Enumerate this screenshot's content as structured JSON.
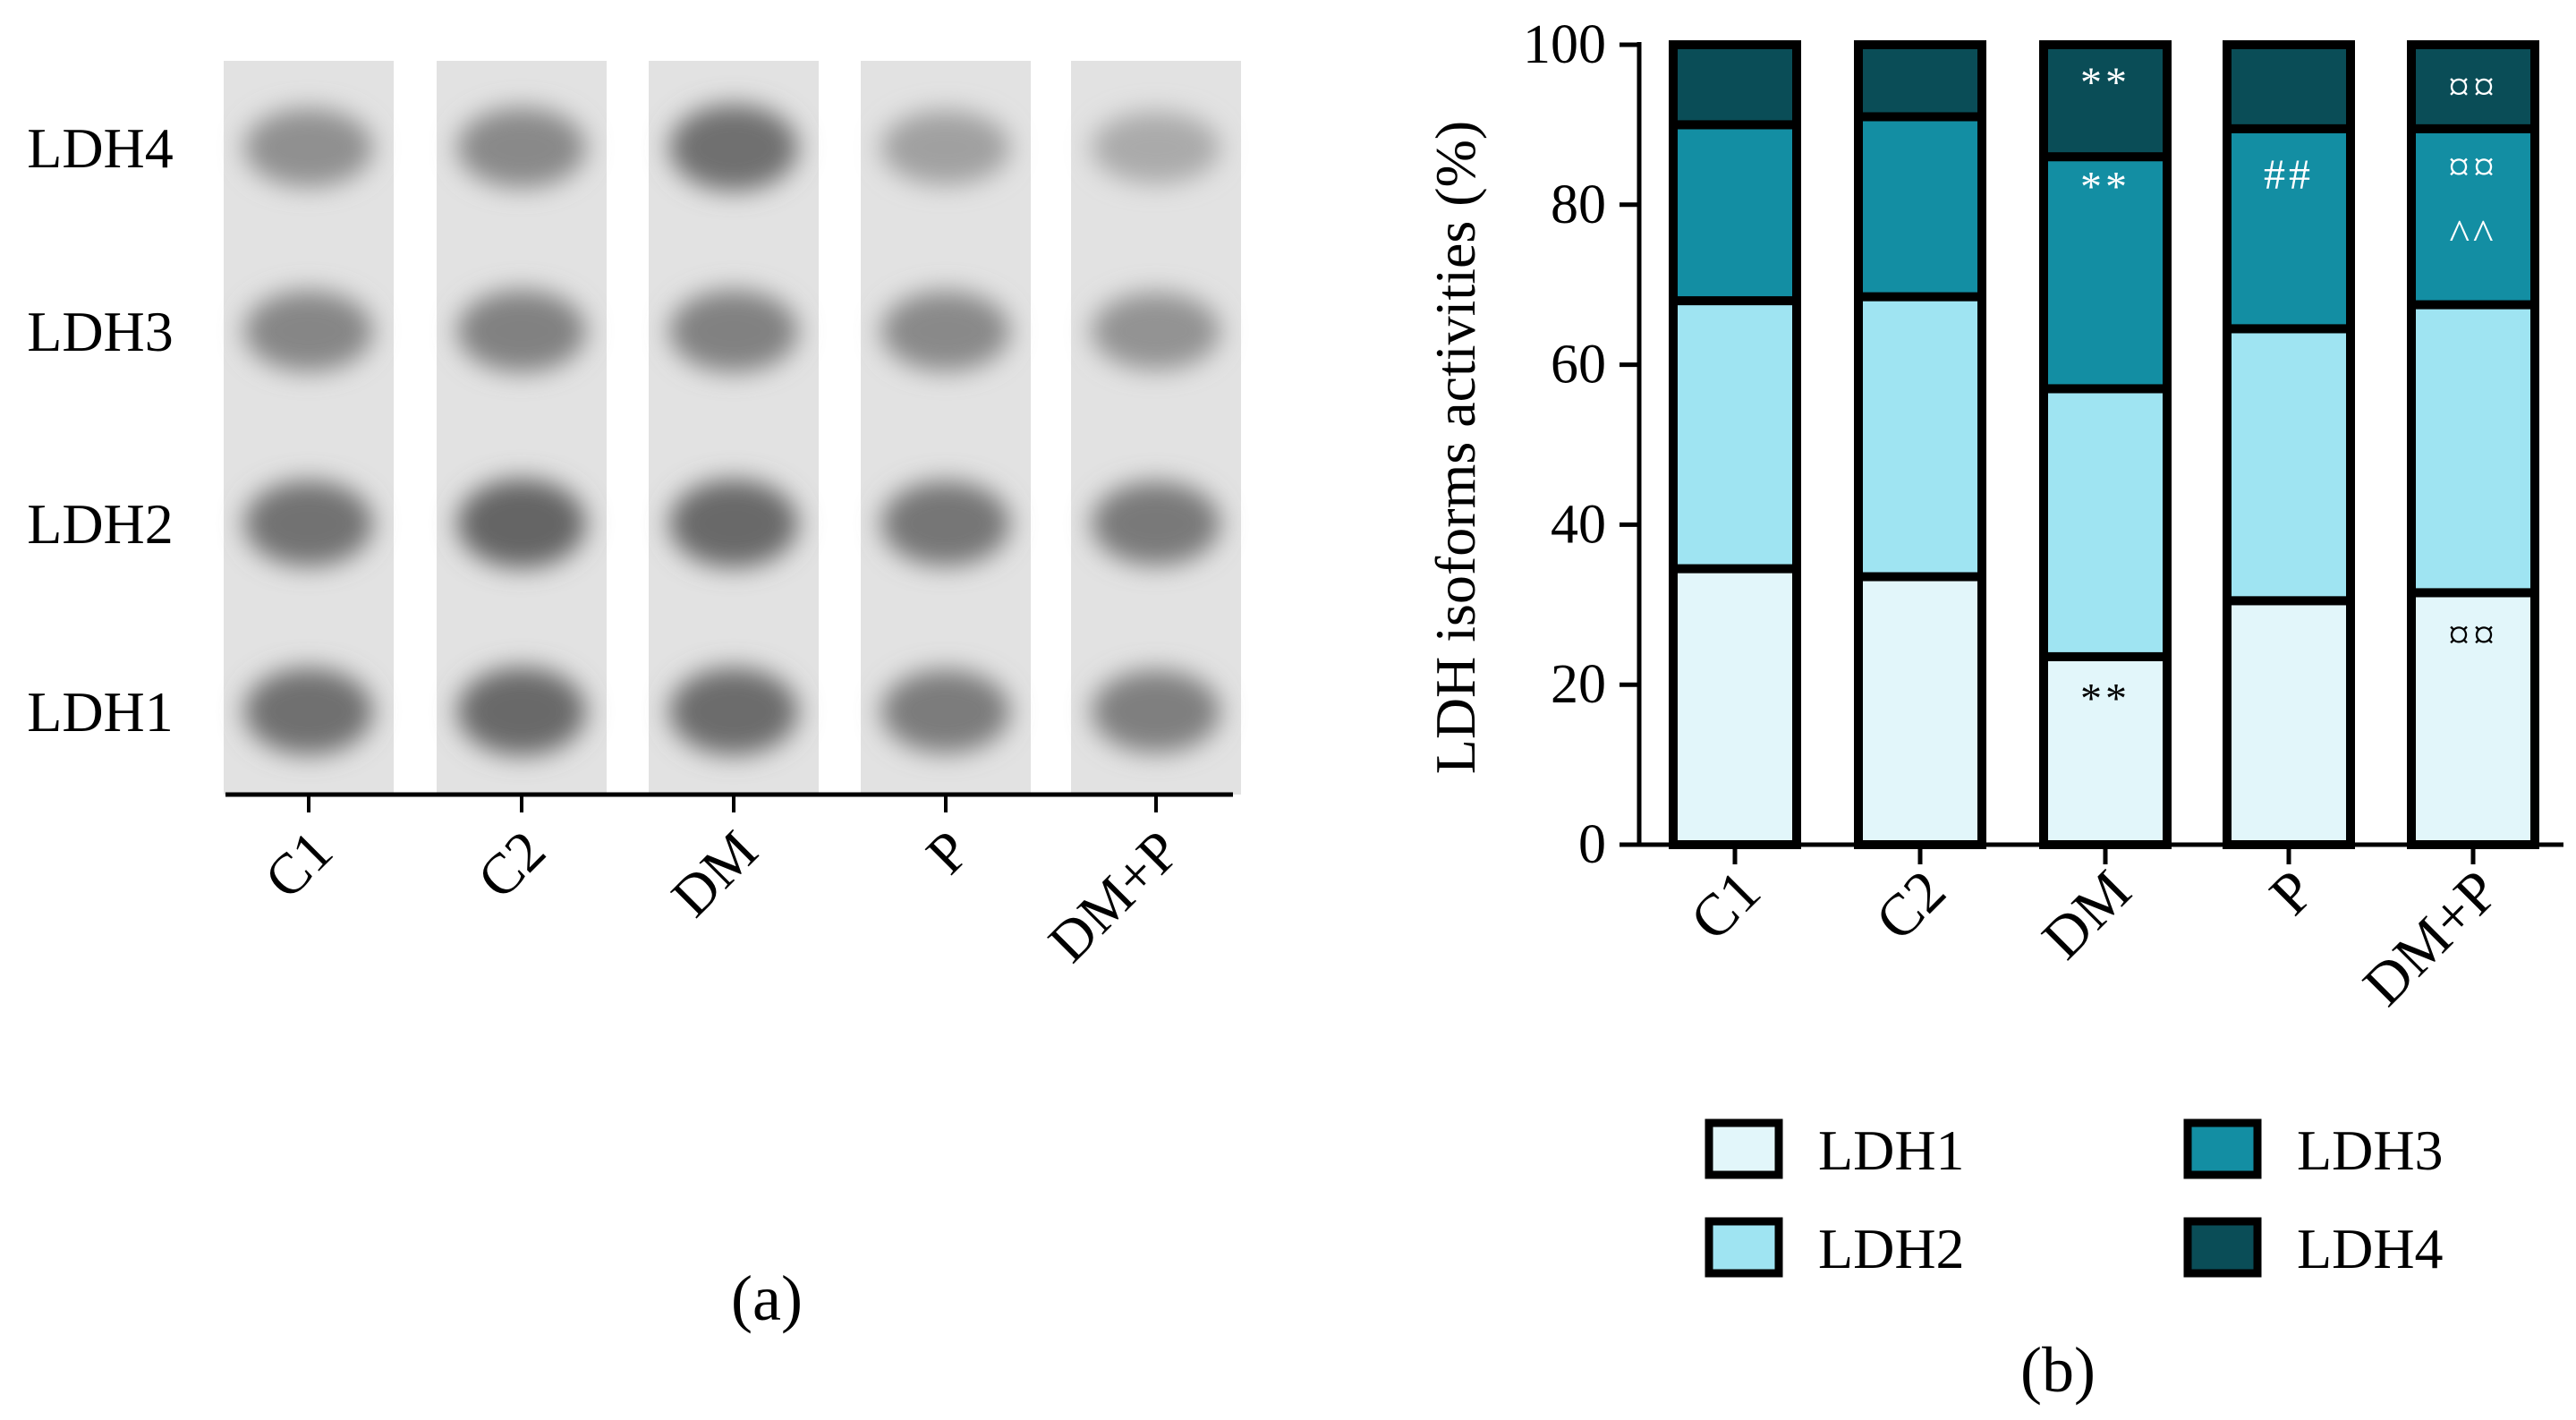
{
  "panel_a": {
    "caption": "(a)",
    "band_labels": [
      "LDH4",
      "LDH3",
      "LDH2",
      "LDH1"
    ],
    "lane_labels": [
      "C1",
      "C2",
      "DM",
      "P",
      "DM+P"
    ],
    "band_intensity": [
      [
        0.55,
        0.62,
        0.78,
        0.8
      ],
      [
        0.6,
        0.66,
        0.88,
        0.85
      ],
      [
        0.8,
        0.66,
        0.85,
        0.82
      ],
      [
        0.42,
        0.6,
        0.75,
        0.7
      ],
      [
        0.35,
        0.52,
        0.72,
        0.68
      ]
    ]
  },
  "chart_data": {
    "type": "bar",
    "stacked": true,
    "caption": "(b)",
    "title": "",
    "xlabel": "",
    "ylabel": "LDH isoforms activities (%)",
    "ylim": [
      0,
      100
    ],
    "yticks": [
      "0",
      "20",
      "40",
      "60",
      "80",
      "100"
    ],
    "categories": [
      "C1",
      "C2",
      "DM",
      "P",
      "DM+P"
    ],
    "series": [
      {
        "name": "LDH1",
        "color": "#e2f6fa",
        "values": [
          34.5,
          33.5,
          23.5,
          30.5,
          31.5
        ]
      },
      {
        "name": "LDH2",
        "color": "#9fe4f2",
        "values": [
          33.5,
          35.0,
          33.5,
          34.0,
          36.0
        ]
      },
      {
        "name": "LDH3",
        "color": "#138ea3",
        "values": [
          22.0,
          22.5,
          29.0,
          25.0,
          22.0
        ]
      },
      {
        "name": "LDH4",
        "color": "#0a4d57",
        "values": [
          10.0,
          9.0,
          14.0,
          10.5,
          10.5
        ]
      }
    ],
    "annotations": [
      {
        "category": "DM",
        "value": 18.5,
        "text": "**",
        "color": "#000000"
      },
      {
        "category": "DM",
        "value": 95.5,
        "text": "**",
        "color": "#ffffff"
      },
      {
        "category": "DM",
        "value": 82.5,
        "text": "**",
        "color": "#ffffff"
      },
      {
        "category": "P",
        "value": 84.0,
        "text": "##",
        "color": "#ffffff"
      },
      {
        "category": "DM+P",
        "value": 95.0,
        "text": "¤¤",
        "color": "#ffffff"
      },
      {
        "category": "DM+P",
        "value": 85.0,
        "text": "¤¤",
        "color": "#ffffff"
      },
      {
        "category": "DM+P",
        "value": 76.5,
        "text": "^^",
        "color": "#ffffff"
      },
      {
        "category": "DM+P",
        "value": 26.5,
        "text": "¤¤",
        "color": "#000000"
      }
    ],
    "legend": {
      "position": "bottom",
      "items": [
        "LDH1",
        "LDH2",
        "LDH3",
        "LDH4"
      ]
    }
  }
}
